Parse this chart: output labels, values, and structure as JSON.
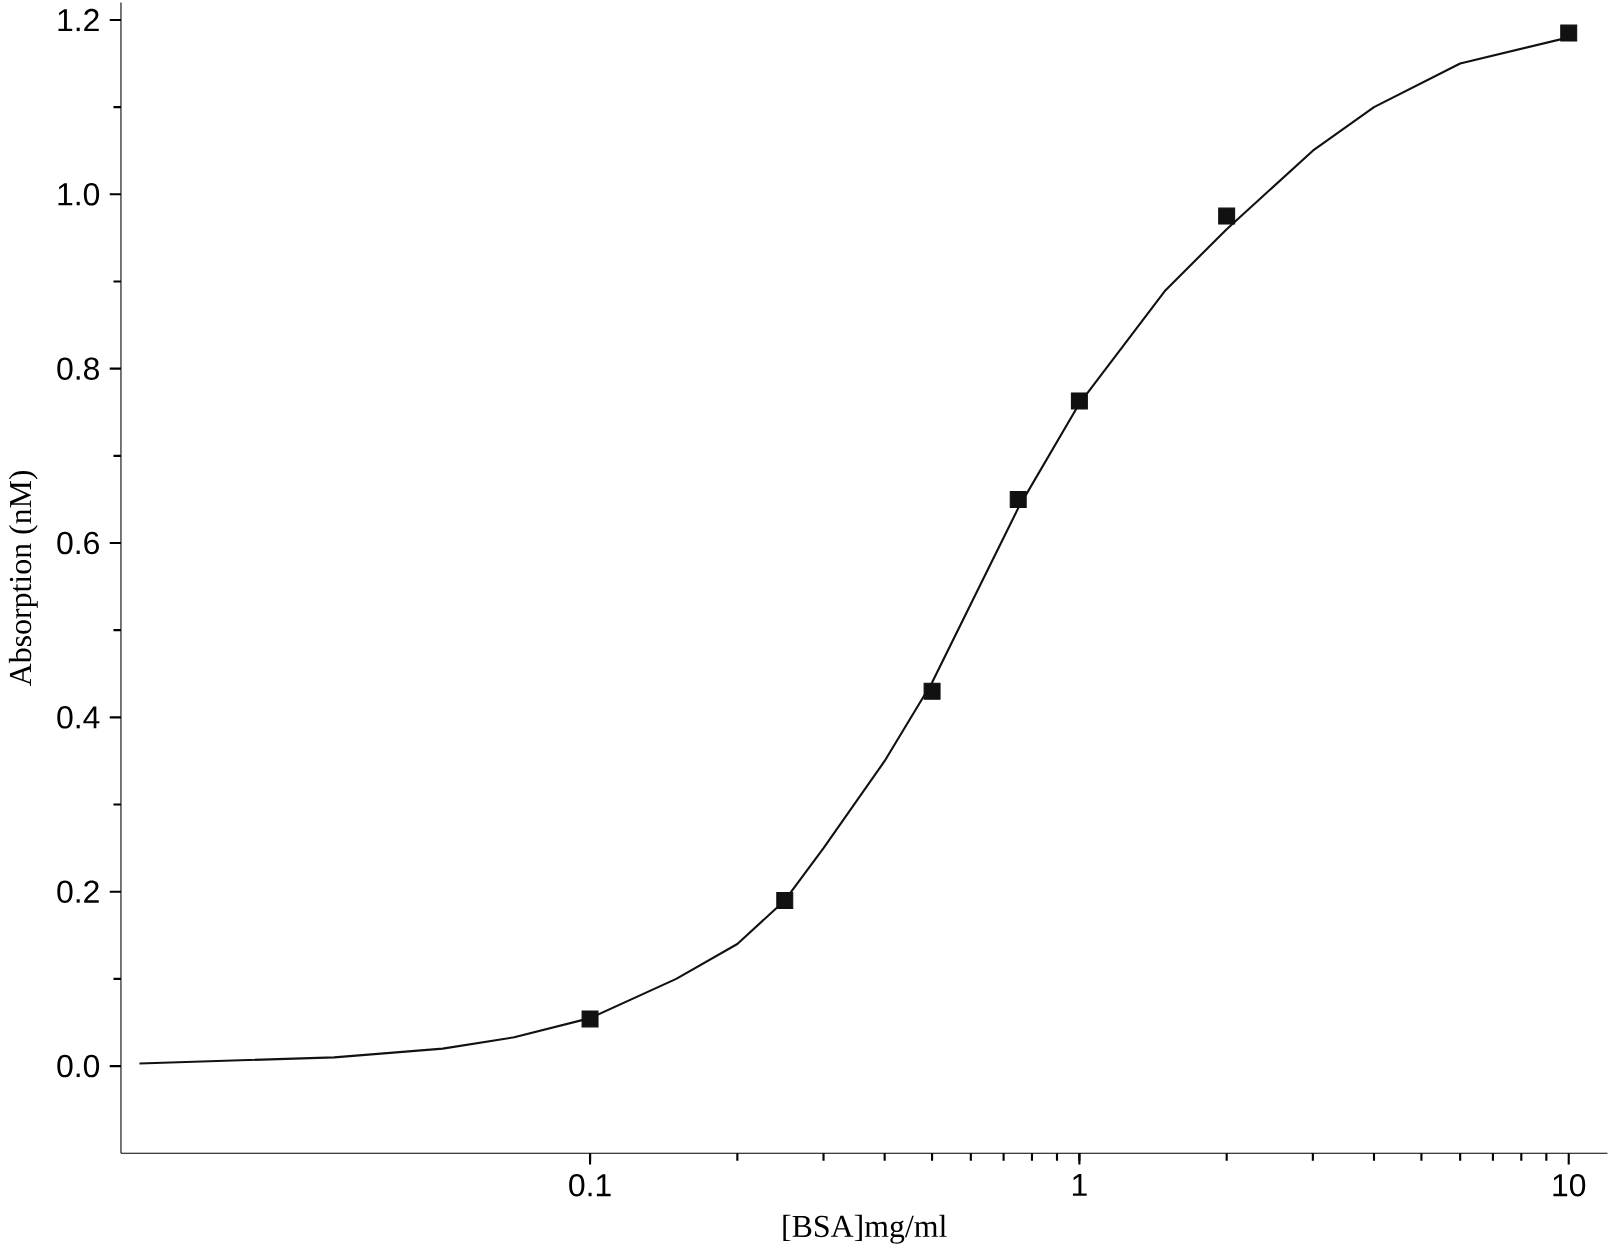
{
  "chart_data": {
    "type": "scatter",
    "xlabel": "[BSA]mg/ml",
    "ylabel": "Absorption (nM)",
    "log": "x",
    "grid": false,
    "xlim": [
      0.011,
      12
    ],
    "ylim": [
      -0.1,
      1.22
    ],
    "xticks": [
      0.1,
      1,
      10
    ],
    "yticks": [
      {
        "value": 0,
        "label": "0.0"
      },
      {
        "value": 0.2,
        "label": "0.2"
      },
      {
        "value": 0.4,
        "label": "0.4"
      },
      {
        "value": 0.6,
        "label": "0.6"
      },
      {
        "value": 0.8,
        "label": "0.8"
      },
      {
        "value": 1.0,
        "label": "1.0"
      },
      {
        "value": 1.2,
        "label": "1.2"
      }
    ],
    "series": [
      {
        "marker": "square",
        "color": "#111111",
        "x": [
          0.1,
          0.25,
          0.5,
          0.75,
          1,
          2,
          10
        ],
        "values": [
          0.054,
          0.19,
          0.43,
          0.65,
          0.763,
          0.975,
          1.185
        ]
      },
      {
        "type": "line",
        "marker": "none",
        "line_style": "solid",
        "color": "#111111",
        "x": [
          0.012,
          0.03,
          0.05,
          0.07,
          0.1,
          0.15,
          0.2,
          0.25,
          0.3,
          0.4,
          0.5,
          0.6,
          0.75,
          1,
          1.5,
          2,
          3,
          4,
          6,
          10
        ],
        "values": [
          0.003,
          0.01,
          0.02,
          0.033,
          0.055,
          0.1,
          0.14,
          0.19,
          0.25,
          0.35,
          0.44,
          0.53,
          0.64,
          0.76,
          0.89,
          0.96,
          1.05,
          1.1,
          1.15,
          1.18
        ]
      }
    ]
  }
}
